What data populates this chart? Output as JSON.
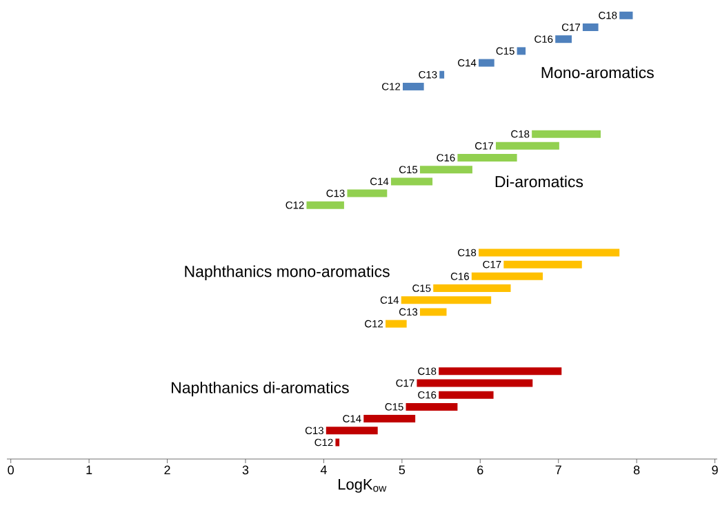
{
  "chart_data": {
    "type": "bar",
    "orientation": "horizontal",
    "xlabel": "LogK$_{ow}$",
    "categories": [
      "C18",
      "C17",
      "C16",
      "C15",
      "C14",
      "C13",
      "C12",
      null,
      null,
      null,
      "C18",
      "C17",
      "C16",
      "C15",
      "C14",
      "C13",
      "C12",
      null,
      null,
      null,
      "C18",
      "C17",
      "C16",
      "C15",
      "C14",
      "C13",
      "C12",
      null,
      null,
      null,
      "C18",
      "C17",
      "C16",
      "C15",
      "C14",
      "C13",
      "C12"
    ],
    "series": [
      {
        "name": "Mono-aromatics",
        "color": "#4f81bd",
        "base": [
          7.78,
          7.31,
          6.96,
          6.47,
          5.98,
          5.48,
          5.01,
          null,
          null,
          null,
          null,
          null,
          null,
          null,
          null,
          null,
          null,
          null,
          null,
          null,
          null,
          null,
          null,
          null,
          null,
          null,
          null,
          null,
          null,
          null,
          null,
          null,
          null,
          null,
          null,
          null,
          null
        ],
        "values": [
          0.17,
          0.2,
          0.21,
          0.11,
          0.2,
          0.06,
          0.27,
          null,
          null,
          null,
          null,
          null,
          null,
          null,
          null,
          null,
          null,
          null,
          null,
          null,
          null,
          null,
          null,
          null,
          null,
          null,
          null,
          null,
          null,
          null,
          null,
          null,
          null,
          null,
          null,
          null,
          null
        ]
      },
      {
        "name": "Di-aromatics",
        "color": "#92d050",
        "base": [
          null,
          null,
          null,
          null,
          null,
          null,
          null,
          null,
          null,
          null,
          6.66,
          6.2,
          5.71,
          5.23,
          4.86,
          4.3,
          3.78,
          null,
          null,
          null,
          null,
          null,
          null,
          null,
          null,
          null,
          null,
          null,
          null,
          null,
          null,
          null,
          null,
          null,
          null,
          null,
          null
        ],
        "values": [
          null,
          null,
          null,
          null,
          null,
          null,
          null,
          null,
          null,
          null,
          0.88,
          0.81,
          0.76,
          0.67,
          0.53,
          0.51,
          0.48,
          null,
          null,
          null,
          null,
          null,
          null,
          null,
          null,
          null,
          null,
          null,
          null,
          null,
          null,
          null,
          null,
          null,
          null,
          null,
          null
        ]
      },
      {
        "name": "Naphthanics mono-aromatics",
        "color": "#ffc000",
        "base": [
          null,
          null,
          null,
          null,
          null,
          null,
          null,
          null,
          null,
          null,
          null,
          null,
          null,
          null,
          null,
          null,
          null,
          null,
          null,
          null,
          5.98,
          6.3,
          5.89,
          5.4,
          4.99,
          5.23,
          4.79,
          null,
          null,
          null,
          null,
          null,
          null,
          null,
          null,
          null,
          null
        ],
        "values": [
          null,
          null,
          null,
          null,
          null,
          null,
          null,
          null,
          null,
          null,
          null,
          null,
          null,
          null,
          null,
          null,
          null,
          null,
          null,
          null,
          1.8,
          1.0,
          0.91,
          0.99,
          1.15,
          0.34,
          0.27,
          null,
          null,
          null,
          null,
          null,
          null,
          null,
          null,
          null,
          null
        ]
      },
      {
        "name": "Naphthanics di-aromatics",
        "color": "#c00000",
        "base": [
          null,
          null,
          null,
          null,
          null,
          null,
          null,
          null,
          null,
          null,
          null,
          null,
          null,
          null,
          null,
          null,
          null,
          null,
          null,
          null,
          null,
          null,
          null,
          null,
          null,
          null,
          null,
          null,
          null,
          null,
          5.47,
          5.19,
          5.47,
          5.05,
          4.51,
          4.03,
          4.15
        ],
        "values": [
          null,
          null,
          null,
          null,
          null,
          null,
          null,
          null,
          null,
          null,
          null,
          null,
          null,
          null,
          null,
          null,
          null,
          null,
          null,
          null,
          null,
          null,
          null,
          null,
          null,
          null,
          null,
          null,
          null,
          null,
          1.57,
          1.48,
          0.7,
          0.66,
          0.66,
          0.66,
          0.05
        ]
      }
    ],
    "xlim": [
      -0.05,
      9.03
    ],
    "xticks": [
      0,
      1,
      2,
      3,
      4,
      5,
      6,
      7,
      8,
      9
    ]
  }
}
